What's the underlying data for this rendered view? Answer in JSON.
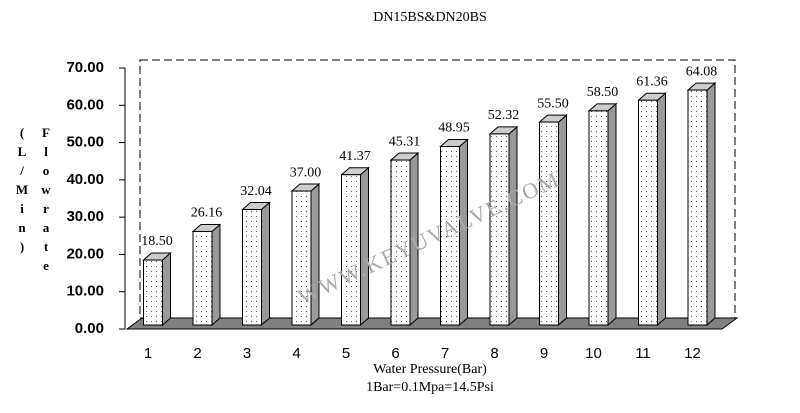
{
  "chart_data": {
    "type": "bar3d",
    "title": "DN15BS&DN20BS",
    "y_label": "Flowrate",
    "y_unit": "(L/Min)",
    "x_label": "Water Pressure(Bar)",
    "note": "1Bar=0.1Mpa=14.5Psi",
    "watermark": "WWW.KEYUVALVE.COM",
    "categories": [
      "1",
      "2",
      "3",
      "4",
      "5",
      "6",
      "7",
      "8",
      "9",
      "10",
      "11",
      "12"
    ],
    "values": [
      18.5,
      26.16,
      32.04,
      37,
      41.37,
      45.31,
      48.95,
      52.32,
      55.5,
      58.5,
      61.36,
      64.08
    ],
    "value_labels": [
      "18.50",
      "26.16",
      "32.04",
      "37.00",
      "41.37",
      "45.31",
      "48.95",
      "52.32",
      "55.50",
      "58.50",
      "61.36",
      "64.08"
    ],
    "color": "#ffffff",
    "ylim": [
      0,
      70
    ],
    "yticks": [
      {
        "value": 0,
        "label": "0.00"
      },
      {
        "value": 10,
        "label": "10.00"
      },
      {
        "value": 20,
        "label": "20.00"
      },
      {
        "value": 30,
        "label": "30.00"
      },
      {
        "value": 40,
        "label": "40.00"
      },
      {
        "value": 50,
        "label": "50.00"
      },
      {
        "value": 60,
        "label": "60.00"
      },
      {
        "value": 70,
        "label": "70.00"
      }
    ],
    "grid": false
  }
}
